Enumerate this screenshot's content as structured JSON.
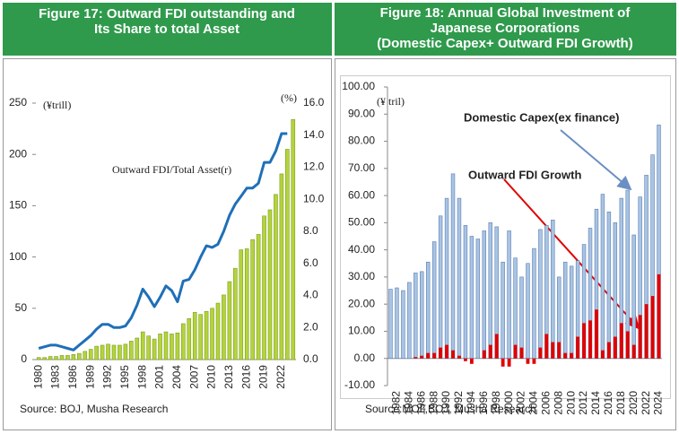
{
  "chart_data": [
    {
      "type": "bar",
      "title": [
        "Figure 17: Outward FDI outstanding and",
        "Its Share to total Asset"
      ],
      "annotations": [
        "(¥trill)",
        "(%)",
        "Outward FDI/Total Asset(r)"
      ],
      "source": "Source: BOJ, Musha Research",
      "categories": [
        "1980",
        null,
        null,
        "1983",
        null,
        null,
        "1986",
        null,
        null,
        "1989",
        null,
        null,
        "1992",
        null,
        null,
        "1995",
        null,
        null,
        "1998",
        null,
        null,
        "2001",
        null,
        null,
        "2004",
        null,
        null,
        "2007",
        null,
        null,
        "2010",
        null,
        null,
        "2013",
        null,
        null,
        "2016",
        null,
        null,
        "2019",
        null,
        null,
        "2022",
        null,
        null
      ],
      "series": [
        {
          "type": "bar",
          "color": "#b4d33c",
          "values": [
            2,
            2,
            3,
            3,
            4,
            4,
            5,
            6,
            8,
            10,
            13,
            14,
            15,
            14,
            14,
            15,
            18,
            21,
            27,
            23,
            20,
            25,
            27,
            25,
            26,
            35,
            40,
            46,
            44,
            47,
            50,
            55,
            63,
            76,
            89,
            107,
            108,
            117,
            122,
            140,
            146,
            161,
            181,
            205,
            234
          ]
        },
        {
          "type": "line",
          "axis": "y2",
          "color": "#1f6fb8",
          "values": [
            0.7,
            0.8,
            0.9,
            0.9,
            0.8,
            0.7,
            0.6,
            0.9,
            1.2,
            1.5,
            1.9,
            2.2,
            2.2,
            2.0,
            2.0,
            2.1,
            2.6,
            3.4,
            4.4,
            3.9,
            3.3,
            3.9,
            4.6,
            4.3,
            3.6,
            4.9,
            5.0,
            5.6,
            6.4,
            7.1,
            7.0,
            7.2,
            8.0,
            9.0,
            9.7,
            10.2,
            10.7,
            10.7,
            11.0,
            12.3,
            12.3,
            13.0,
            14.1,
            14.1,
            null
          ]
        }
      ],
      "ylim": [
        0,
        250
      ],
      "yticks": [
        0,
        50,
        100,
        150,
        200,
        250
      ],
      "y2lim": [
        0,
        16
      ],
      "y2ticks": [
        {
          "value": 0,
          "label": "0.0"
        },
        {
          "value": 2,
          "label": "2.0"
        },
        {
          "value": 4,
          "label": "4.0"
        },
        {
          "value": 6,
          "label": "6.0"
        },
        {
          "value": 8,
          "label": "8.0"
        },
        {
          "value": 10,
          "label": "10.0"
        },
        {
          "value": 12,
          "label": "12.0"
        },
        {
          "value": 14,
          "label": "14.0"
        },
        {
          "value": 16,
          "label": "16.0"
        }
      ],
      "grid": false
    },
    {
      "type": "bar",
      "title": [
        "Figure 18: Annual Global Investment of",
        "Japanese Corporations",
        "(Domestic Capex+ Outward FDI Growth)"
      ],
      "annotations": [
        "Domestic Capex(ex finance)",
        "Outward FDI Growth",
        "(¥ tril)"
      ],
      "source": "Source:MOF,BOJ, Musha Research",
      "categories": [
        null,
        "1982",
        null,
        "1984",
        null,
        "1986",
        null,
        "1988",
        null,
        "1990",
        null,
        "1992",
        null,
        "1994",
        null,
        "1996",
        null,
        "1998",
        null,
        "2000",
        null,
        "2002",
        null,
        "2004",
        null,
        "2006",
        null,
        "2008",
        null,
        "2010",
        null,
        "2012",
        null,
        "2014",
        null,
        "2016",
        null,
        "2018",
        null,
        "2020",
        null,
        "2022",
        null,
        "2024"
      ],
      "series": [
        {
          "type": "bar",
          "color": "#a9c4e2",
          "values": [
            25.5,
            26,
            25,
            28,
            31.5,
            32,
            35.5,
            43,
            52.5,
            59,
            68,
            59,
            49,
            45,
            44,
            47,
            50,
            48.5,
            35.5,
            47,
            37,
            30,
            35,
            40.5,
            47.5,
            49,
            51,
            30,
            35.5,
            34,
            36,
            42,
            48,
            55,
            60.5,
            54,
            50,
            59,
            62,
            45.5,
            59.5,
            67.5,
            75,
            86
          ]
        },
        {
          "type": "bar",
          "color": "#e00000",
          "values": [
            0,
            0,
            0,
            0,
            0.5,
            1,
            2,
            2,
            4,
            5,
            3,
            1,
            -1,
            -2,
            0,
            3,
            5,
            9,
            -3,
            -3,
            5,
            4,
            -2,
            -2,
            4,
            9,
            6,
            6,
            2,
            2,
            8,
            13,
            14,
            18,
            3,
            6,
            8,
            13,
            10,
            5,
            16,
            20,
            23,
            31
          ]
        }
      ],
      "ylim": [
        -10,
        100
      ],
      "yticks": [
        {
          "value": -10,
          "label": "-10.00"
        },
        {
          "value": 0,
          "label": "0.00"
        },
        {
          "value": 10,
          "label": "10.00"
        },
        {
          "value": 20,
          "label": "20.00"
        },
        {
          "value": 30,
          "label": "30.00"
        },
        {
          "value": 40,
          "label": "40.00"
        },
        {
          "value": 50,
          "label": "50.00"
        },
        {
          "value": 60,
          "label": "60.00"
        },
        {
          "value": 70,
          "label": "70.00"
        },
        {
          "value": 80,
          "label": "80.00"
        },
        {
          "value": 90,
          "label": "90.00"
        },
        {
          "value": 100,
          "label": "100.00"
        }
      ],
      "grid": false
    }
  ]
}
